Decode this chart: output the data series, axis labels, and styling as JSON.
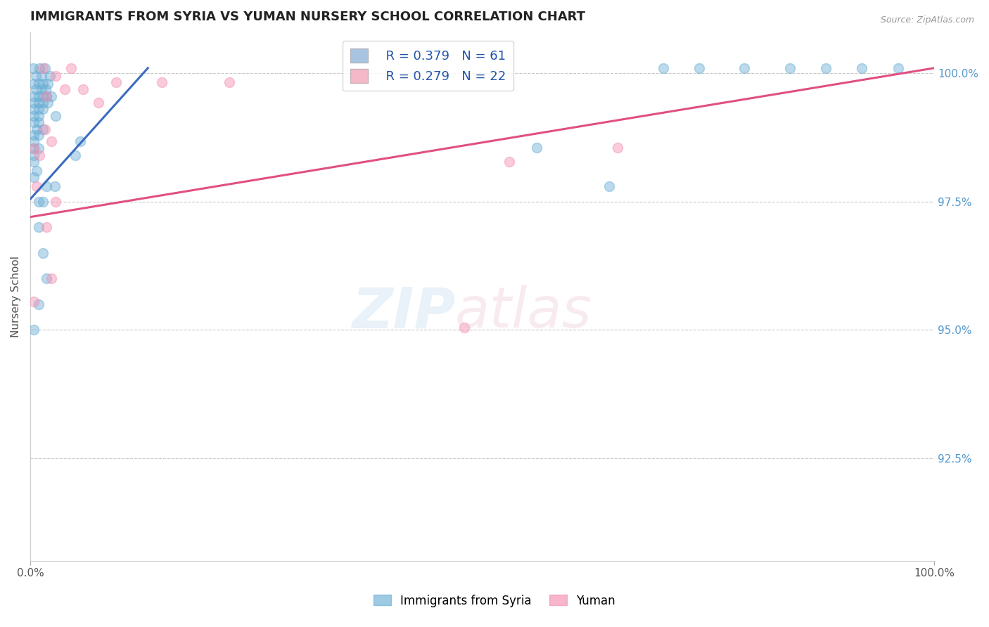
{
  "title": "IMMIGRANTS FROM SYRIA VS YUMAN NURSERY SCHOOL CORRELATION CHART",
  "source_text": "Source: ZipAtlas.com",
  "ylabel": "Nursery School",
  "xlim": [
    0.0,
    1.0
  ],
  "ylim": [
    0.905,
    1.008
  ],
  "x_tick_labels": [
    "0.0%",
    "100.0%"
  ],
  "y_tick_labels": [
    "92.5%",
    "95.0%",
    "97.5%",
    "100.0%"
  ],
  "y_tick_positions": [
    0.925,
    0.95,
    0.975,
    1.0
  ],
  "legend_r1": "R = 0.379",
  "legend_n1": "N = 61",
  "legend_r2": "R = 0.279",
  "legend_n2": "N = 22",
  "legend_color1": "#a8c4e0",
  "legend_color2": "#f4b8c8",
  "blue_dots": [
    [
      0.003,
      1.001
    ],
    [
      0.01,
      1.001
    ],
    [
      0.016,
      1.001
    ],
    [
      0.006,
      0.9995
    ],
    [
      0.012,
      0.9995
    ],
    [
      0.022,
      0.9995
    ],
    [
      0.004,
      0.998
    ],
    [
      0.009,
      0.998
    ],
    [
      0.014,
      0.998
    ],
    [
      0.019,
      0.998
    ],
    [
      0.006,
      0.9968
    ],
    [
      0.012,
      0.9968
    ],
    [
      0.017,
      0.9968
    ],
    [
      0.004,
      0.9955
    ],
    [
      0.009,
      0.9955
    ],
    [
      0.014,
      0.9955
    ],
    [
      0.018,
      0.9955
    ],
    [
      0.023,
      0.9955
    ],
    [
      0.004,
      0.9942
    ],
    [
      0.009,
      0.9942
    ],
    [
      0.014,
      0.9942
    ],
    [
      0.019,
      0.9942
    ],
    [
      0.004,
      0.993
    ],
    [
      0.009,
      0.993
    ],
    [
      0.014,
      0.993
    ],
    [
      0.004,
      0.9917
    ],
    [
      0.009,
      0.9917
    ],
    [
      0.028,
      0.9917
    ],
    [
      0.004,
      0.9904
    ],
    [
      0.009,
      0.9904
    ],
    [
      0.007,
      0.989
    ],
    [
      0.014,
      0.989
    ],
    [
      0.004,
      0.988
    ],
    [
      0.009,
      0.988
    ],
    [
      0.004,
      0.9867
    ],
    [
      0.055,
      0.9867
    ],
    [
      0.004,
      0.9854
    ],
    [
      0.009,
      0.9854
    ],
    [
      0.004,
      0.984
    ],
    [
      0.05,
      0.984
    ],
    [
      0.004,
      0.9827
    ],
    [
      0.007,
      0.981
    ],
    [
      0.004,
      0.9797
    ],
    [
      0.018,
      0.978
    ],
    [
      0.027,
      0.978
    ],
    [
      0.009,
      0.975
    ],
    [
      0.014,
      0.975
    ],
    [
      0.009,
      0.97
    ],
    [
      0.014,
      0.965
    ],
    [
      0.018,
      0.96
    ],
    [
      0.009,
      0.955
    ],
    [
      0.004,
      0.95
    ],
    [
      0.7,
      1.001
    ],
    [
      0.74,
      1.001
    ],
    [
      0.79,
      1.001
    ],
    [
      0.84,
      1.001
    ],
    [
      0.88,
      1.001
    ],
    [
      0.92,
      1.001
    ],
    [
      0.96,
      1.001
    ],
    [
      0.56,
      0.9855
    ],
    [
      0.64,
      0.978
    ]
  ],
  "pink_dots": [
    [
      0.014,
      1.001
    ],
    [
      0.045,
      1.001
    ],
    [
      0.028,
      0.9995
    ],
    [
      0.095,
      0.9982
    ],
    [
      0.145,
      0.9982
    ],
    [
      0.22,
      0.9982
    ],
    [
      0.038,
      0.9968
    ],
    [
      0.058,
      0.9968
    ],
    [
      0.018,
      0.9955
    ],
    [
      0.075,
      0.9942
    ],
    [
      0.016,
      0.989
    ],
    [
      0.023,
      0.9867
    ],
    [
      0.004,
      0.9854
    ],
    [
      0.01,
      0.984
    ],
    [
      0.53,
      0.9827
    ],
    [
      0.007,
      0.978
    ],
    [
      0.028,
      0.975
    ],
    [
      0.018,
      0.97
    ],
    [
      0.023,
      0.96
    ],
    [
      0.004,
      0.9555
    ],
    [
      0.65,
      0.9855
    ],
    [
      0.48,
      0.9505
    ]
  ],
  "blue_line_x": [
    0.0,
    0.13
  ],
  "blue_line_y": [
    0.9755,
    1.001
  ],
  "pink_line_x": [
    0.0,
    1.0
  ],
  "pink_line_y": [
    0.972,
    1.001
  ],
  "dot_size": 100,
  "dot_alpha": 0.45,
  "blue_color": "#6baed6",
  "pink_color": "#f48fb1",
  "blue_line_color": "#3a6cbf",
  "pink_line_color": "#e05080",
  "grid_color": "#c8c8c8",
  "title_color": "#222222",
  "title_fontsize": 13,
  "axis_label_color": "#555555",
  "right_tick_color": "#5599cc"
}
